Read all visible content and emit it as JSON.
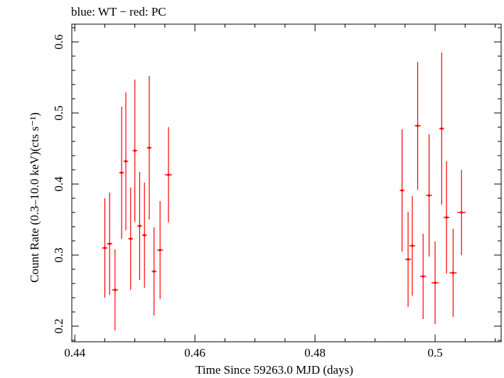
{
  "chart_data": {
    "type": "scatter",
    "title": "blue: WT − red: PC",
    "xlabel": "Time Since 59263.0 MJD (days)",
    "ylabel": "Count Rate (0.3–10.0 keV)(cts s⁻¹)",
    "xlim": [
      0.4395,
      0.511
    ],
    "ylim": [
      0.178,
      0.625
    ],
    "x_ticks": [
      0.44,
      0.46,
      0.48,
      0.5
    ],
    "x_tick_labels": [
      "0.44",
      "0.46",
      "0.48",
      "0.5"
    ],
    "y_ticks": [
      0.2,
      0.3,
      0.4,
      0.5,
      0.6
    ],
    "y_tick_labels": [
      "0.2",
      "0.3",
      "0.4",
      "0.5",
      "0.6"
    ],
    "grid": false,
    "legend": "none",
    "series": [
      {
        "name": "PC",
        "color": "#ff0000",
        "points": [
          {
            "x": 0.445,
            "xerr": 0.00045,
            "y": 0.31,
            "yerr": 0.07
          },
          {
            "x": 0.4458,
            "xerr": 0.00045,
            "y": 0.316,
            "yerr": 0.072
          },
          {
            "x": 0.4467,
            "xerr": 0.0005,
            "y": 0.251,
            "yerr": 0.057
          },
          {
            "x": 0.4478,
            "xerr": 0.0004,
            "y": 0.416,
            "yerr": 0.093
          },
          {
            "x": 0.4485,
            "xerr": 0.0004,
            "y": 0.432,
            "yerr": 0.097
          },
          {
            "x": 0.4493,
            "xerr": 0.0004,
            "y": 0.323,
            "yerr": 0.072
          },
          {
            "x": 0.45,
            "xerr": 0.0004,
            "y": 0.447,
            "yerr": 0.1
          },
          {
            "x": 0.4508,
            "xerr": 0.0004,
            "y": 0.341,
            "yerr": 0.076
          },
          {
            "x": 0.4516,
            "xerr": 0.0004,
            "y": 0.328,
            "yerr": 0.074
          },
          {
            "x": 0.4524,
            "xerr": 0.0004,
            "y": 0.451,
            "yerr": 0.101
          },
          {
            "x": 0.4532,
            "xerr": 0.0004,
            "y": 0.277,
            "yerr": 0.062
          },
          {
            "x": 0.4542,
            "xerr": 0.0005,
            "y": 0.307,
            "yerr": 0.069
          },
          {
            "x": 0.4556,
            "xerr": 0.0006,
            "y": 0.413,
            "yerr": 0.067
          },
          {
            "x": 0.4945,
            "xerr": 0.0004,
            "y": 0.391,
            "yerr": 0.086
          },
          {
            "x": 0.4955,
            "xerr": 0.0005,
            "y": 0.294,
            "yerr": 0.067
          },
          {
            "x": 0.4962,
            "xerr": 0.0005,
            "y": 0.313,
            "yerr": 0.07
          },
          {
            "x": 0.4971,
            "xerr": 0.0005,
            "y": 0.482,
            "yerr": 0.09
          },
          {
            "x": 0.498,
            "xerr": 0.0005,
            "y": 0.27,
            "yerr": 0.06
          },
          {
            "x": 0.499,
            "xerr": 0.0005,
            "y": 0.384,
            "yerr": 0.086
          },
          {
            "x": 0.5,
            "xerr": 0.0006,
            "y": 0.261,
            "yerr": 0.058
          },
          {
            "x": 0.5011,
            "xerr": 0.0004,
            "y": 0.478,
            "yerr": 0.107
          },
          {
            "x": 0.5019,
            "xerr": 0.0005,
            "y": 0.353,
            "yerr": 0.079
          },
          {
            "x": 0.503,
            "xerr": 0.0006,
            "y": 0.275,
            "yerr": 0.062
          },
          {
            "x": 0.5044,
            "xerr": 0.0007,
            "y": 0.36,
            "yerr": 0.06
          }
        ]
      }
    ]
  }
}
